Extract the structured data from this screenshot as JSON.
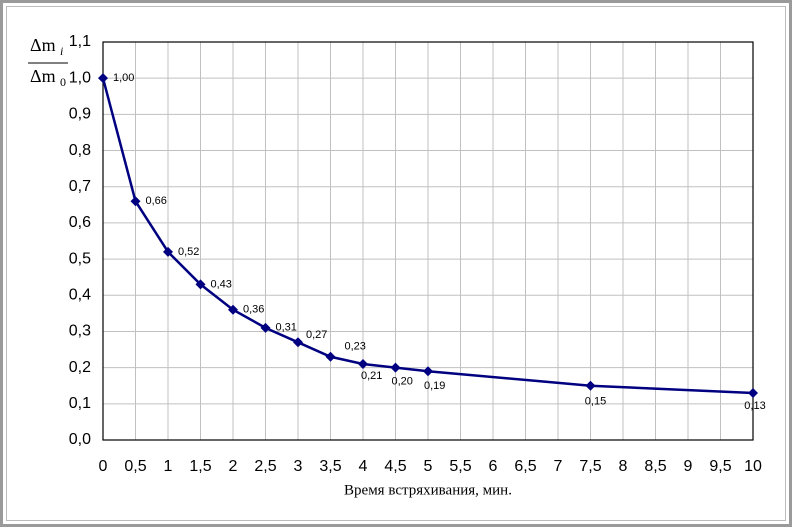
{
  "chart_data": {
    "type": "line",
    "x_label": "Время встряхивания, мин.",
    "y_label": {
      "numerator": "Δm",
      "numerator_sub": "i",
      "denominator": "Δm",
      "denominator_sub": "0"
    },
    "x": [
      0,
      0.5,
      1,
      1.5,
      2,
      2.5,
      3,
      3.5,
      4,
      4.5,
      5,
      7.5,
      10
    ],
    "series": [
      {
        "color": "#000080",
        "values": [
          1.0,
          0.66,
          0.52,
          0.43,
          0.36,
          0.31,
          0.27,
          0.23,
          0.21,
          0.2,
          0.19,
          0.15,
          0.13
        ],
        "value_labels": [
          "1,00",
          "0,66",
          "0,52",
          "0,43",
          "0,36",
          "0,31",
          "0,27",
          "0,23",
          "0,21",
          "0,20",
          "0,19",
          "0,15",
          "0,13"
        ]
      }
    ],
    "xlim": [
      0,
      10
    ],
    "xticks": [
      0,
      {
        "value": 0.5,
        "label": "0,5"
      },
      1,
      {
        "value": 1.5,
        "label": "1,5"
      },
      2,
      {
        "value": 2.5,
        "label": "2,5"
      },
      3,
      {
        "value": 3.5,
        "label": "3,5"
      },
      4,
      {
        "value": 4.5,
        "label": "4,5"
      },
      5,
      {
        "value": 5.5,
        "label": "5,5"
      },
      6,
      {
        "value": 6.5,
        "label": "6,5"
      },
      7,
      {
        "value": 7.5,
        "label": "7,5"
      },
      8,
      {
        "value": 8.5,
        "label": "8,5"
      },
      9,
      {
        "value": 9.5,
        "label": "9,5"
      },
      10
    ],
    "ylim": [
      0,
      1.1
    ],
    "yticks": [
      {
        "value": 0,
        "label": "0,0"
      },
      {
        "value": 0.1,
        "label": "0,1"
      },
      {
        "value": 0.2,
        "label": "0,2"
      },
      {
        "value": 0.3,
        "label": "0,3"
      },
      {
        "value": 0.4,
        "label": "0,4"
      },
      {
        "value": 0.5,
        "label": "0,5"
      },
      {
        "value": 0.6,
        "label": "0,6"
      },
      {
        "value": 0.7,
        "label": "0,7"
      },
      {
        "value": 0.8,
        "label": "0,8"
      },
      {
        "value": 0.9,
        "label": "0,9"
      },
      {
        "value": 1.0,
        "label": "1,0"
      },
      {
        "value": 1.1,
        "label": "1,1"
      }
    ],
    "grid": true
  }
}
